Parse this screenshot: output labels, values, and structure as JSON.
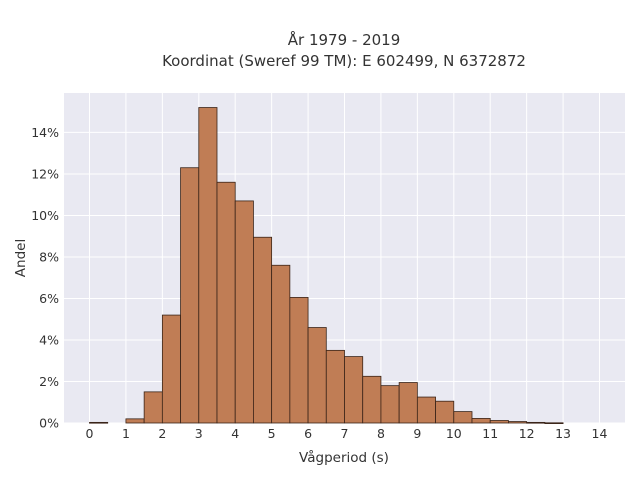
{
  "chart_data": {
    "type": "bar",
    "title": "År 1979 - 2019",
    "subtitle": "Koordinat (Sweref 99 TM): E 602499, N 6372872",
    "xlabel": "Vågperiod (s)",
    "ylabel": "Andel",
    "bin_width": 0.5,
    "bins_start": [
      0,
      1,
      1.5,
      2,
      2.5,
      3,
      3.5,
      4,
      4.5,
      5,
      5.5,
      6,
      6.5,
      7,
      7.5,
      8,
      8.5,
      9,
      9.5,
      10,
      10.5,
      11,
      11.5,
      12,
      12.5
    ],
    "values": [
      0.03,
      0.2,
      1.5,
      5.2,
      12.3,
      15.2,
      11.6,
      10.7,
      8.95,
      7.6,
      6.05,
      4.6,
      3.5,
      3.2,
      2.25,
      1.8,
      1.95,
      1.25,
      1.05,
      0.55,
      0.22,
      0.12,
      0.07,
      0.03,
      0.01
    ],
    "xlim": [
      -0.7,
      14.7
    ],
    "ylim": [
      0,
      15.9
    ],
    "x_ticks": [
      "0",
      "1",
      "2",
      "3",
      "4",
      "5",
      "6",
      "7",
      "8",
      "9",
      "10",
      "11",
      "12",
      "13",
      "14"
    ],
    "y_ticks": [
      "0%",
      "2%",
      "4%",
      "6%",
      "8%",
      "10%",
      "12%",
      "14%"
    ],
    "grid": true,
    "colors": {
      "bar": "#c07d55",
      "bar_edge": "#3a2418",
      "plot_bg": "#e9e9f2",
      "grid": "#ffffff"
    }
  }
}
